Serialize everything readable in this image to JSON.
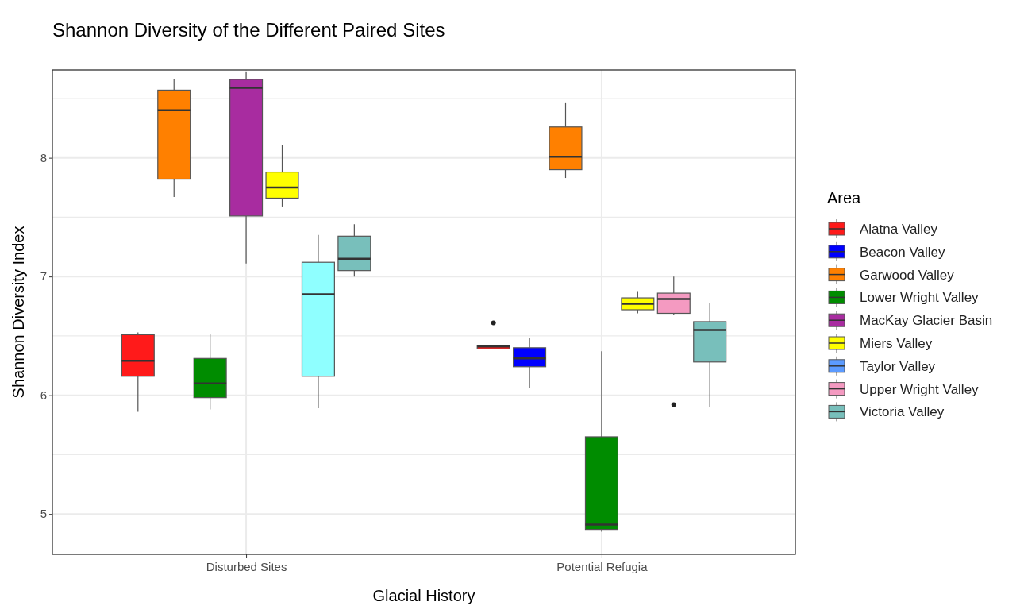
{
  "chart_data": {
    "type": "box",
    "title": "Shannon Diversity of the Different Paired Sites",
    "xlabel": "Glacial History",
    "ylabel": "Shannon Diversity Index",
    "legend_title": "Area",
    "legend": "right",
    "grid": true,
    "categories": [
      "Disturbed Sites",
      "Potential Refugia"
    ],
    "ylim": [
      4.66,
      8.74
    ],
    "yticks": [
      {
        "value": 5,
        "label": "5"
      },
      {
        "value": 5.5,
        "label": null
      },
      {
        "value": 6,
        "label": "6"
      },
      {
        "value": 6.5,
        "label": null
      },
      {
        "value": 7,
        "label": "7"
      },
      {
        "value": 7.5,
        "label": null
      },
      {
        "value": 8,
        "label": "8"
      },
      {
        "value": 8.5,
        "label": null
      }
    ],
    "series": [
      {
        "name": "Alatna Valley",
        "color": "#ff1a1a",
        "boxes": [
          {
            "low": 5.86,
            "q1": 6.16,
            "median": 6.29,
            "q3": 6.51,
            "high": 6.53
          },
          {
            "low": 6.39,
            "q1": 6.39,
            "median": 6.41,
            "q3": 6.42,
            "high": 6.42,
            "outliers": [
              6.61
            ]
          }
        ]
      },
      {
        "name": "Beacon Valley",
        "color": "#0000ff",
        "boxes": [
          null,
          {
            "low": 6.06,
            "q1": 6.24,
            "median": 6.31,
            "q3": 6.4,
            "high": 6.48
          }
        ]
      },
      {
        "name": "Garwood Valley",
        "color": "#ff8000",
        "boxes": [
          {
            "low": 7.67,
            "q1": 7.82,
            "median": 8.4,
            "q3": 8.57,
            "high": 8.66
          },
          {
            "low": 7.83,
            "q1": 7.9,
            "median": 8.01,
            "q3": 8.26,
            "high": 8.46
          }
        ]
      },
      {
        "name": "Lower Wright Valley",
        "color": "#008c00",
        "boxes": [
          {
            "low": 5.88,
            "q1": 5.98,
            "median": 6.1,
            "q3": 6.31,
            "high": 6.52
          },
          {
            "low": 4.85,
            "q1": 4.87,
            "median": 4.91,
            "q3": 5.65,
            "high": 6.37
          }
        ]
      },
      {
        "name": "MacKay Glacier Basin",
        "color": "#a82ca0",
        "boxes": [
          {
            "low": 7.11,
            "q1": 7.51,
            "median": 8.59,
            "q3": 8.66,
            "high": 8.72
          },
          null
        ]
      },
      {
        "name": "Miers Valley",
        "color": "#ffff00",
        "boxes": [
          {
            "low": 7.59,
            "q1": 7.66,
            "median": 7.75,
            "q3": 7.88,
            "high": 8.11
          },
          {
            "low": 6.69,
            "q1": 6.72,
            "median": 6.77,
            "q3": 6.82,
            "high": 6.87
          }
        ]
      },
      {
        "name": "Taylor Valley",
        "color": "#5c9bff",
        "colors": [
          "#8fffff",
          null
        ],
        "boxes": [
          {
            "low": 5.89,
            "q1": 6.16,
            "median": 6.85,
            "q3": 7.12,
            "high": 7.35
          },
          null
        ]
      },
      {
        "name": "Upper Wright Valley",
        "color": "#f49ac1",
        "boxes": [
          null,
          {
            "low": 6.68,
            "q1": 6.69,
            "median": 6.81,
            "q3": 6.86,
            "high": 7.0,
            "outliers": [
              5.92
            ]
          }
        ]
      },
      {
        "name": "Victoria Valley",
        "color": "#78bfbb",
        "boxes": [
          {
            "low": 7.0,
            "q1": 7.05,
            "median": 7.15,
            "q3": 7.34,
            "high": 7.44
          },
          {
            "low": 5.9,
            "q1": 6.28,
            "median": 6.55,
            "q3": 6.62,
            "high": 6.78
          }
        ]
      }
    ]
  }
}
